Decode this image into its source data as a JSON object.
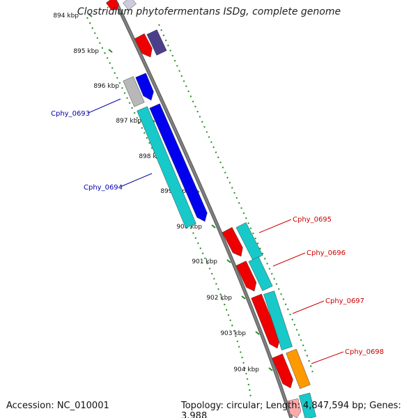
{
  "title": "Clostridium phytofermentans ISDg, complete genome",
  "accession_label": "Accession: NC_010001",
  "summary_label": "Topology: circular; Length: 4,847,594 bp; Genes: 3,988",
  "colors": {
    "backbone": "#808080",
    "tick": "#228B22",
    "forward_label": "#cc0000",
    "reverse_label": "#0000aa",
    "red": "#ee0000",
    "cyan": "#17c9c9",
    "blue": "#0000ee",
    "purple": "#4b3f8c",
    "grey": "#b8b8b8",
    "orange": "#ff9900"
  },
  "scale": {
    "unit": "kbp",
    "ticks": [
      "894 kbp",
      "895 kbp",
      "896 kbp",
      "897 kbp",
      "898 kbp",
      "899 kbp",
      "900 kbp",
      "901 kbp",
      "902 kbp",
      "903 kbp",
      "904 kbp"
    ]
  },
  "gene_labels": [
    {
      "name": "Cphy_0693",
      "strand": "reverse"
    },
    {
      "name": "Cphy_0694",
      "strand": "reverse"
    },
    {
      "name": "Cphy_0695",
      "strand": "forward"
    },
    {
      "name": "Cphy_0696",
      "strand": "forward"
    },
    {
      "name": "Cphy_0697",
      "strand": "forward"
    },
    {
      "name": "Cphy_0698",
      "strand": "forward"
    }
  ]
}
